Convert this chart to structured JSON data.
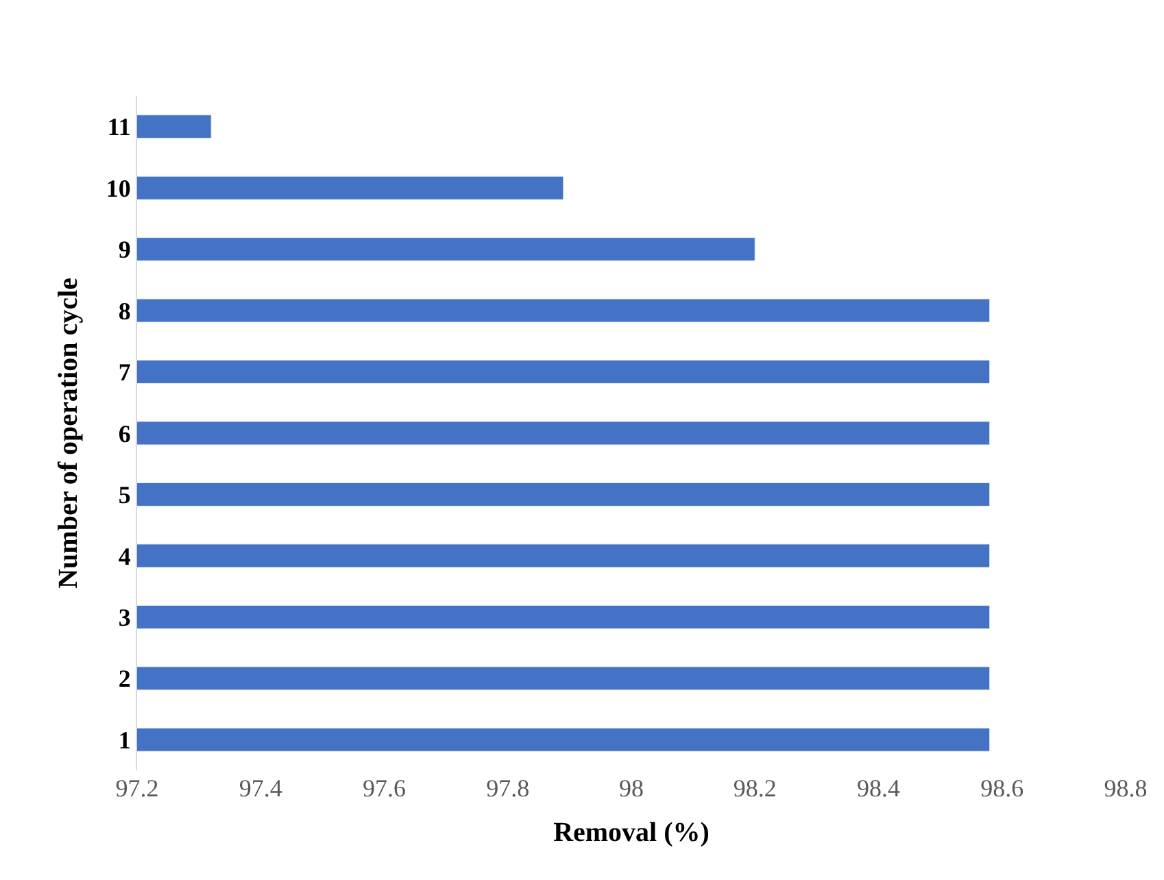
{
  "chart_data": {
    "type": "bar",
    "orientation": "horizontal",
    "xlabel": "Removal (%)",
    "ylabel": "Number of operation cycle",
    "categories": [
      "11",
      "10",
      "9",
      "8",
      "7",
      "6",
      "5",
      "4",
      "3",
      "2",
      "1"
    ],
    "values": [
      97.32,
      97.89,
      98.2,
      98.58,
      98.58,
      98.58,
      98.58,
      98.58,
      98.58,
      98.58,
      98.58
    ],
    "color": "#4472c4",
    "xlim": [
      97.2,
      98.8
    ],
    "xticks": [
      97.2,
      97.4,
      97.6,
      97.8,
      98,
      98.2,
      98.4,
      98.6,
      98.8
    ]
  }
}
